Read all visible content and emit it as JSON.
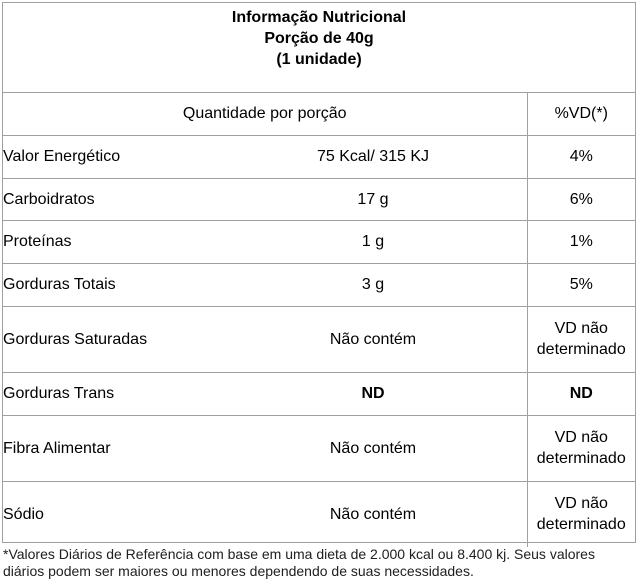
{
  "header": {
    "title": "Informação Nutricional",
    "serving": "Porção de 40g",
    "unit": "(1 unidade)"
  },
  "columns": {
    "quantity": "Quantidade por porção",
    "dv": "%VD(*)"
  },
  "rows": [
    {
      "name": "Valor Energético",
      "qty": "75 Kcal/ 315 KJ",
      "dv": "4%"
    },
    {
      "name": "Carboidratos",
      "qty": "17 g",
      "dv": "6%"
    },
    {
      "name": "Proteínas",
      "qty": "1 g",
      "dv": "1%"
    },
    {
      "name": "Gorduras Totais",
      "qty": "3 g",
      "dv": "5%"
    },
    {
      "name": "Gorduras Saturadas",
      "qty": "Não contém",
      "dv": "VD não determinado"
    },
    {
      "name": "Gorduras Trans",
      "qty": "ND",
      "dv": "ND"
    },
    {
      "name": "Fibra Alimentar",
      "qty": "Não contém",
      "dv": "VD não determinado"
    },
    {
      "name": "Sódio",
      "qty": "Não contém",
      "dv": "VD não determinado"
    }
  ],
  "footnote": "*Valores Diários de Referência com base em uma dieta de 2.000 kcal ou 8.400 kj. Seus valores diários podem ser maiores ou menores dependendo de suas necessidades."
}
